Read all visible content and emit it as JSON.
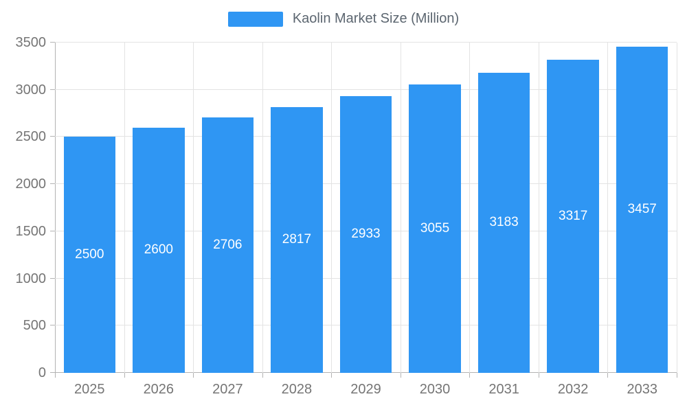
{
  "chart_data": {
    "type": "bar",
    "title": "Kaolin Market Size (Million)",
    "series_name": "Kaolin Market Size (Million)",
    "categories": [
      "2025",
      "2026",
      "2027",
      "2028",
      "2029",
      "2030",
      "2031",
      "2032",
      "2033"
    ],
    "values": [
      2500,
      2600,
      2706,
      2817,
      2933,
      3055,
      3183,
      3317,
      3457
    ],
    "data_labels_visible": true,
    "ylim": [
      0,
      3500
    ],
    "yticks": [
      0,
      500,
      1000,
      1500,
      2000,
      2500,
      3000,
      3500
    ],
    "grid": true,
    "legend_position": "top-center",
    "bar_color": "#2F96F3",
    "bar_label_color": "#FFFFFF",
    "axis_text_color": "#757575",
    "gridline_color": "#E3E3E3",
    "axis_line_color": "#B3B3B3",
    "legend_text_color": "#5C6670"
  },
  "legend": {
    "label": "Kaolin Market Size (Million)"
  }
}
